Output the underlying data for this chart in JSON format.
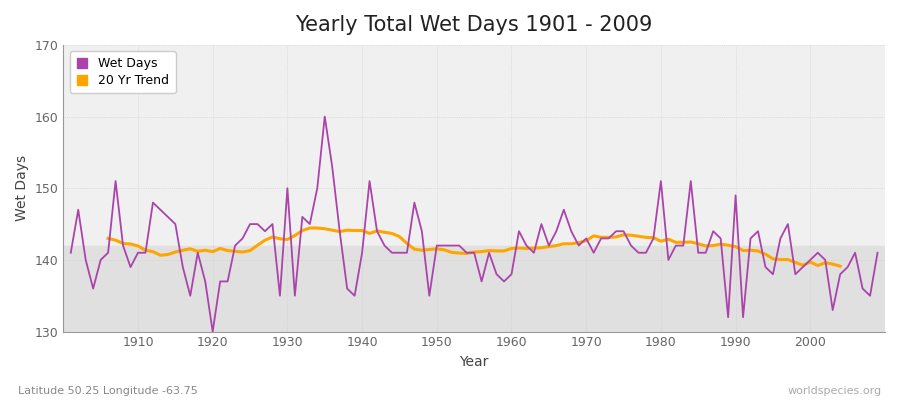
{
  "title": "Yearly Total Wet Days 1901 - 2009",
  "xlabel": "Year",
  "ylabel": "Wet Days",
  "xlim": [
    1900,
    2010
  ],
  "ylim": [
    130,
    170
  ],
  "yticks": [
    130,
    140,
    150,
    160,
    170
  ],
  "xticks": [
    1910,
    1920,
    1930,
    1940,
    1950,
    1960,
    1970,
    1980,
    1990,
    2000
  ],
  "wet_days_color": "#aa44aa",
  "trend_color": "#FFA500",
  "fig_bg_color": "#ffffff",
  "plot_bg_color": "#f0f0f0",
  "plot_bg_lower_color": "#e0e0e0",
  "legend_labels": [
    "Wet Days",
    "20 Yr Trend"
  ],
  "subtitle": "Latitude 50.25 Longitude -63.75",
  "watermark": "worldspecies.org",
  "years": [
    1901,
    1902,
    1903,
    1904,
    1905,
    1906,
    1907,
    1908,
    1909,
    1910,
    1911,
    1912,
    1913,
    1914,
    1915,
    1916,
    1917,
    1918,
    1919,
    1920,
    1921,
    1922,
    1923,
    1924,
    1925,
    1926,
    1927,
    1928,
    1929,
    1930,
    1931,
    1932,
    1933,
    1934,
    1935,
    1936,
    1937,
    1938,
    1939,
    1940,
    1941,
    1942,
    1943,
    1944,
    1945,
    1946,
    1947,
    1948,
    1949,
    1950,
    1951,
    1952,
    1953,
    1954,
    1955,
    1956,
    1957,
    1958,
    1959,
    1960,
    1961,
    1962,
    1963,
    1964,
    1965,
    1966,
    1967,
    1968,
    1969,
    1970,
    1971,
    1972,
    1973,
    1974,
    1975,
    1976,
    1977,
    1978,
    1979,
    1980,
    1981,
    1982,
    1983,
    1984,
    1985,
    1986,
    1987,
    1988,
    1989,
    1990,
    1991,
    1992,
    1993,
    1994,
    1995,
    1996,
    1997,
    1998,
    1999,
    2000,
    2001,
    2002,
    2003,
    2004,
    2005,
    2006,
    2007,
    2008,
    2009
  ],
  "wet_days": [
    141,
    147,
    140,
    136,
    140,
    141,
    151,
    142,
    139,
    141,
    141,
    148,
    147,
    146,
    145,
    139,
    135,
    141,
    137,
    130,
    137,
    137,
    142,
    143,
    145,
    145,
    144,
    145,
    135,
    150,
    135,
    146,
    145,
    150,
    160,
    153,
    144,
    136,
    135,
    141,
    151,
    144,
    142,
    141,
    141,
    141,
    148,
    144,
    135,
    142,
    142,
    142,
    142,
    141,
    141,
    137,
    141,
    138,
    137,
    138,
    144,
    142,
    141,
    145,
    142,
    144,
    147,
    144,
    142,
    143,
    141,
    143,
    143,
    144,
    144,
    142,
    141,
    141,
    143,
    151,
    140,
    142,
    142,
    151,
    141,
    141,
    144,
    143,
    132,
    149,
    132,
    143,
    144,
    139,
    138,
    143,
    145,
    138,
    139,
    140,
    141,
    140,
    133,
    138,
    139,
    141,
    136,
    135,
    141
  ]
}
